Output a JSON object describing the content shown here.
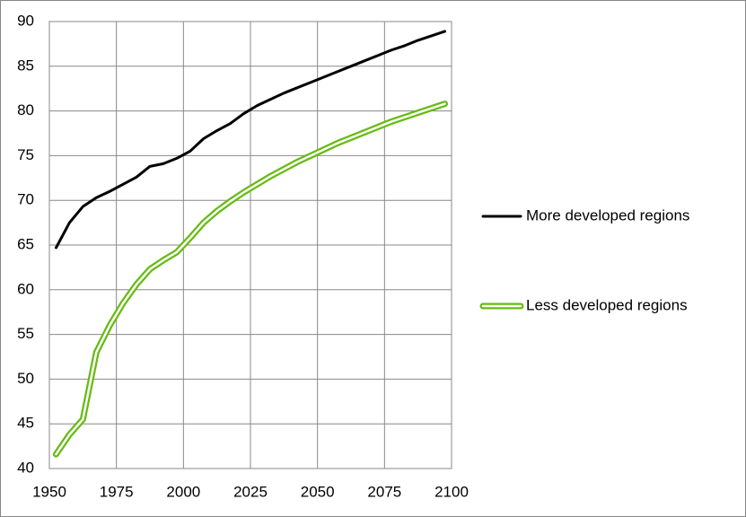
{
  "chart_data": {
    "type": "line",
    "x": [
      1952.5,
      1957.5,
      1962.5,
      1967.5,
      1972.5,
      1977.5,
      1982.5,
      1987.5,
      1992.5,
      1997.5,
      2002.5,
      2007.5,
      2012.5,
      2017.5,
      2022.5,
      2027.5,
      2032.5,
      2037.5,
      2042.5,
      2047.5,
      2052.5,
      2057.5,
      2062.5,
      2067.5,
      2072.5,
      2077.5,
      2082.5,
      2087.5,
      2092.5,
      2097.5
    ],
    "series": [
      {
        "name": "More developed regions",
        "color": "#000000",
        "style": "solid",
        "values": [
          64.7,
          67.5,
          69.3,
          70.3,
          71.0,
          71.8,
          72.6,
          73.8,
          74.1,
          74.7,
          75.5,
          76.9,
          77.8,
          78.6,
          79.7,
          80.6,
          81.3,
          82.0,
          82.6,
          83.2,
          83.8,
          84.4,
          85.0,
          85.6,
          86.2,
          86.8,
          87.3,
          87.9,
          88.4,
          88.9
        ]
      },
      {
        "name": "Less developed regions",
        "color": "#66bb11",
        "style": "double",
        "values": [
          41.6,
          43.8,
          45.5,
          53.0,
          56.0,
          58.5,
          60.6,
          62.3,
          63.3,
          64.2,
          65.8,
          67.5,
          68.8,
          69.9,
          70.9,
          71.8,
          72.7,
          73.5,
          74.3,
          75.0,
          75.7,
          76.4,
          77.0,
          77.6,
          78.2,
          78.8,
          79.3,
          79.8,
          80.3,
          80.8
        ]
      }
    ],
    "xlim": [
      1950,
      2100
    ],
    "xticks": [
      1950,
      1975,
      2000,
      2025,
      2050,
      2075,
      2100
    ],
    "ylim": [
      40,
      90
    ],
    "yticks": [
      40,
      45,
      50,
      55,
      60,
      65,
      70,
      75,
      80,
      85,
      90
    ],
    "grid": true,
    "legend": "right"
  }
}
